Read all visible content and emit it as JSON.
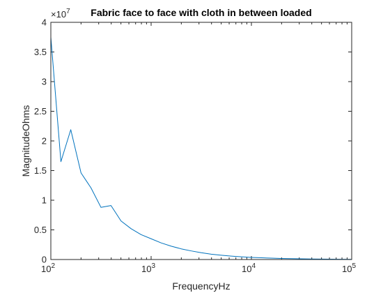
{
  "chart_data": {
    "type": "line",
    "title": "Fabric face to face with cloth in between loaded",
    "xlabel": "FrequencyHz",
    "ylabel": "MagnitudeOhms",
    "x_scale": "log",
    "xlim": [
      100,
      100000
    ],
    "ylim": [
      0,
      40000000
    ],
    "y_multiplier": {
      "base": "×10",
      "exponent": "7"
    },
    "x_ticks": [
      {
        "base": "10",
        "exp": "2",
        "value": 100
      },
      {
        "base": "10",
        "exp": "3",
        "value": 1000
      },
      {
        "base": "10",
        "exp": "4",
        "value": 10000
      },
      {
        "base": "10",
        "exp": "5",
        "value": 100000
      }
    ],
    "y_ticks": [
      {
        "label": "0",
        "value": 0
      },
      {
        "label": "0.5",
        "value": 5000000
      },
      {
        "label": "1",
        "value": 10000000
      },
      {
        "label": "1.5",
        "value": 15000000
      },
      {
        "label": "2",
        "value": 20000000
      },
      {
        "label": "2.5",
        "value": 25000000
      },
      {
        "label": "3",
        "value": 30000000
      },
      {
        "label": "3.5",
        "value": 35000000
      },
      {
        "label": "4",
        "value": 40000000
      }
    ],
    "grid": false,
    "box": true,
    "series": [
      {
        "color": "#0072BD",
        "x": [
          100,
          126,
          158,
          200,
          251,
          316,
          398,
          501,
          631,
          794,
          1000,
          1259,
          1585,
          1995,
          2512,
          3162,
          3981,
          5012,
          6310,
          7943,
          10000,
          12589,
          15849,
          19953,
          25119,
          31623,
          39811,
          50119,
          63096,
          79433,
          100000
        ],
        "y": [
          37500000,
          16500000,
          21900000,
          14600000,
          12100000,
          8800000,
          9100000,
          6500000,
          5200000,
          4200000,
          3500000,
          2800000,
          2250000,
          1800000,
          1450000,
          1150000,
          900000,
          720000,
          570000,
          450000,
          360000,
          290000,
          230000,
          180000,
          145000,
          115000,
          92000,
          73000,
          58000,
          46000,
          37000
        ]
      }
    ]
  }
}
